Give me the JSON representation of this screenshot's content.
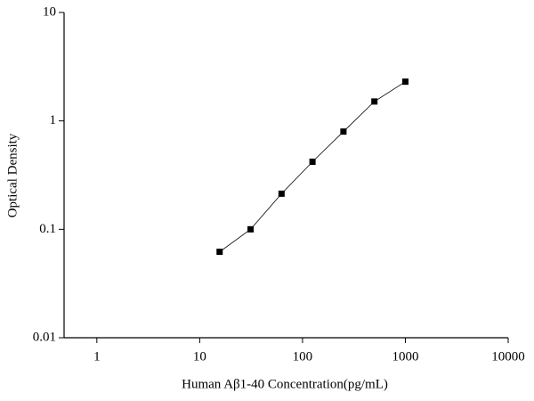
{
  "chart_data": {
    "type": "line",
    "xlabel": "Human Aβ1-40 Concentration(pg/mL)",
    "ylabel": "Optical Density",
    "x": [
      15.625,
      31.25,
      62.5,
      125,
      250,
      500,
      1000
    ],
    "series": [
      {
        "color": "#000000",
        "values": [
          0.062,
          0.1,
          0.213,
          0.42,
          0.797,
          1.51,
          2.3
        ]
      }
    ],
    "xscale": "log",
    "yscale": "log",
    "xlim": [
      0.48,
      10000
    ],
    "ylim": [
      0.01,
      10
    ],
    "xticks": [
      1,
      10,
      100,
      1000,
      10000
    ],
    "yticks": [
      0.01,
      0.1,
      1,
      10
    ],
    "grid": false
  }
}
